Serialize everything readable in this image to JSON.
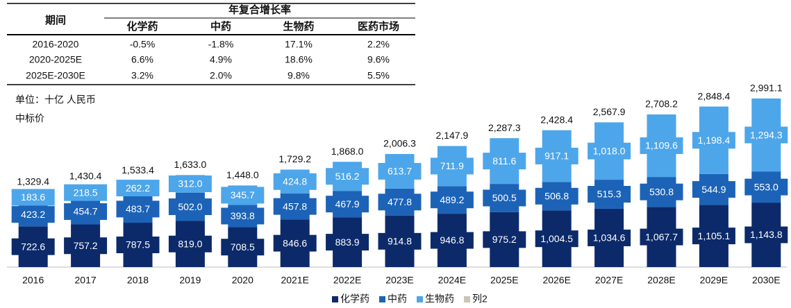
{
  "table": {
    "period_header": "期间",
    "group_header": "年复合增长率",
    "columns": [
      "化学药",
      "中药",
      "生物药",
      "医药市场"
    ],
    "rows": [
      [
        "2016-2020",
        "-0.5%",
        "-1.8%",
        "17.1%",
        "2.2%"
      ],
      [
        "2020-2025E",
        "6.6%",
        "4.9%",
        "18.6%",
        "9.6%"
      ],
      [
        "2025E-2030E",
        "3.2%",
        "2.0%",
        "9.8%",
        "5.5%"
      ]
    ]
  },
  "notes": [
    "单位：十亿 人民币",
    "中标价"
  ],
  "chart_data": {
    "type": "bar",
    "stacked": true,
    "categories": [
      "2016",
      "2017",
      "2018",
      "2019",
      "2020",
      "2021E",
      "2022E",
      "2023E",
      "2024E",
      "2025E",
      "2026E",
      "2027E",
      "2028E",
      "2029E",
      "2030E"
    ],
    "ylim": [
      0,
      3200
    ],
    "series": [
      {
        "name": "化学药",
        "color": "#0c2a6a",
        "values": [
          722.6,
          757.2,
          787.5,
          819.0,
          708.5,
          846.6,
          883.9,
          914.8,
          946.8,
          975.2,
          1004.5,
          1034.6,
          1067.7,
          1105.1,
          1143.8
        ],
        "value_labels": [
          "722.6",
          "757.2",
          "787.5",
          "819.0",
          "708.5",
          "846.6",
          "883.9",
          "914.8",
          "946.8",
          "975.2",
          "1,004.5",
          "1,034.6",
          "1,067.7",
          "1,105.1",
          "1,143.8"
        ]
      },
      {
        "name": "中药",
        "color": "#1c63b7",
        "values": [
          423.2,
          454.7,
          483.7,
          502.0,
          393.8,
          457.8,
          467.9,
          477.8,
          489.2,
          500.5,
          506.8,
          515.3,
          530.8,
          544.9,
          553.0
        ],
        "value_labels": [
          "423.2",
          "454.7",
          "483.7",
          "502.0",
          "393.8",
          "457.8",
          "467.9",
          "477.8",
          "489.2",
          "500.5",
          "506.8",
          "515.3",
          "530.8",
          "544.9",
          "553.0"
        ]
      },
      {
        "name": "生物药",
        "color": "#4ea6ea",
        "values": [
          183.6,
          218.5,
          262.2,
          312.0,
          345.7,
          424.8,
          516.2,
          613.7,
          711.9,
          811.6,
          917.1,
          1018.0,
          1109.6,
          1198.4,
          1294.3
        ],
        "value_labels": [
          "183.6",
          "218.5",
          "262.2",
          "312.0",
          "345.7",
          "424.8",
          "516.2",
          "613.7",
          "711.9",
          "811.6",
          "917.1",
          "1,018.0",
          "1,109.6",
          "1,198.4",
          "1,294.3"
        ]
      },
      {
        "name": "列2",
        "color": "#cbc6b3",
        "stack": false,
        "values": [
          1329.4,
          1430.4,
          1533.4,
          1633.0,
          1448.0,
          1729.2,
          1868.0,
          2006.3,
          2147.9,
          2287.3,
          2428.4,
          2567.9,
          2708.2,
          2848.4,
          2991.1
        ],
        "value_labels": [
          "1,329.4",
          "1,430.4",
          "1,533.4",
          "1,633.0",
          "1,448.0",
          "1,729.2",
          "1,868.0",
          "2,006.3",
          "2,147.9",
          "2,287.3",
          "2,428.4",
          "2,567.9",
          "2,708.2",
          "2,848.4",
          "2,991.1"
        ]
      }
    ]
  }
}
